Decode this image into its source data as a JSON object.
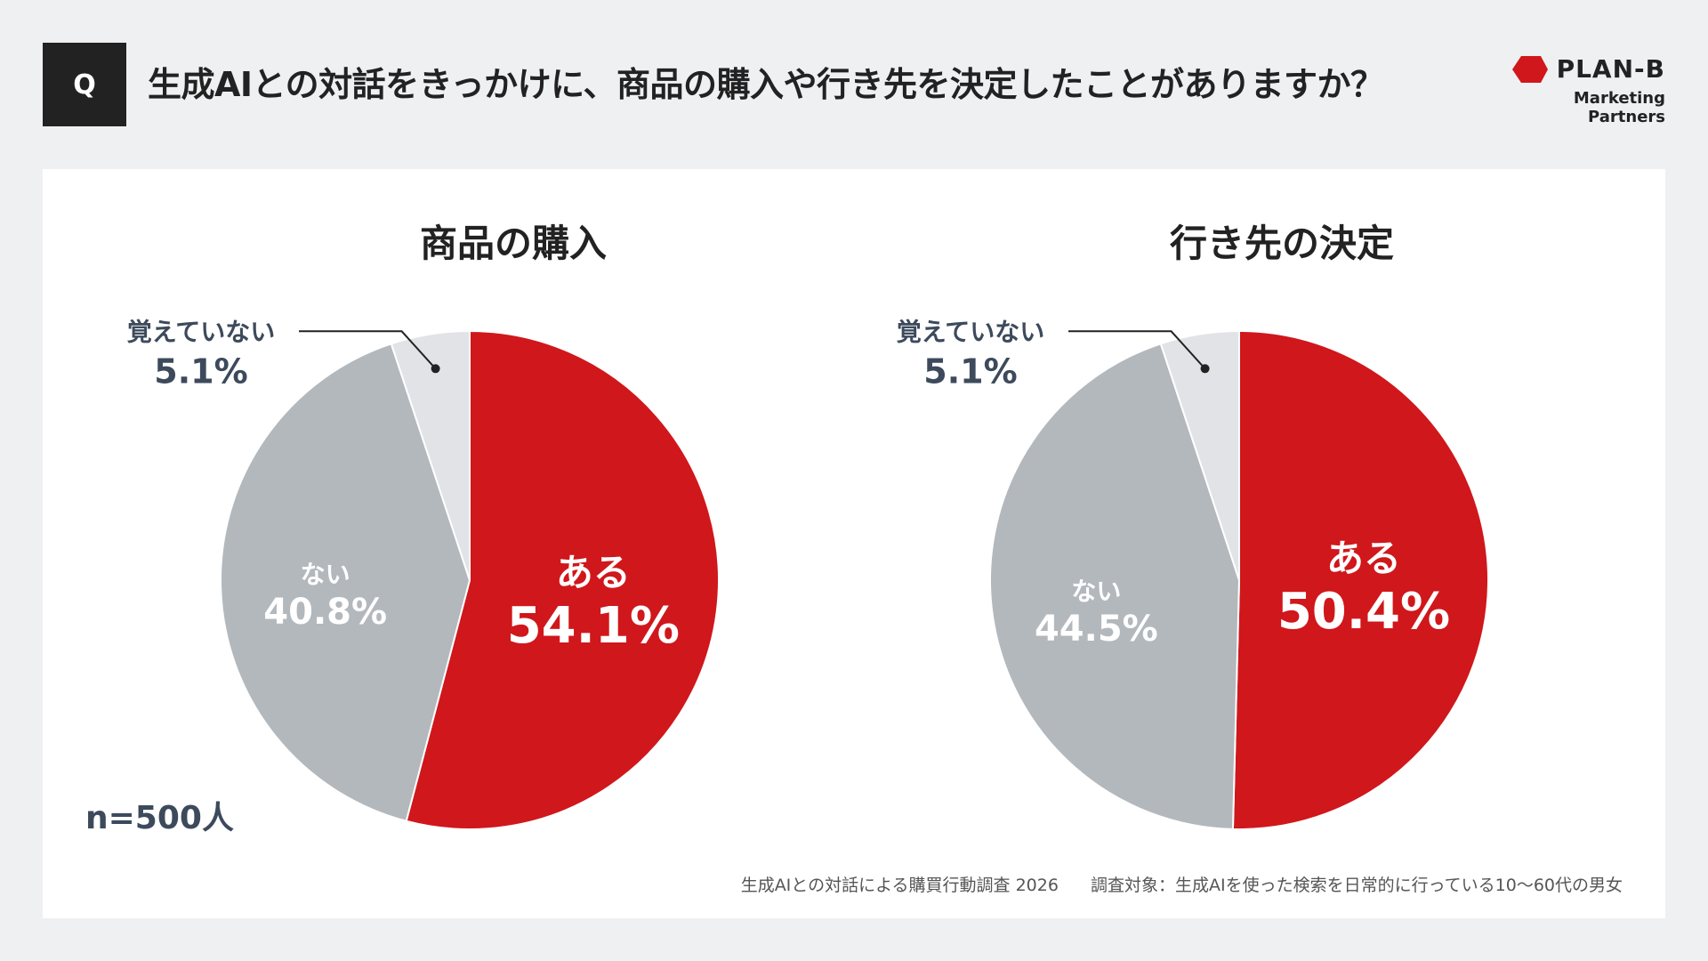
{
  "header": {
    "q_badge": "Q",
    "question": "生成AIとの対話をきっかけに、商品の購入や行き先を決定したことがありますか？"
  },
  "logo": {
    "name": "PLAN-B",
    "subtitle": "Marketing Partners",
    "mark_color": "#d0171b"
  },
  "colors": {
    "yes": "#d0171b",
    "no": "#b3b8bd",
    "unknown": "#e1e3e6"
  },
  "chart_data": [
    {
      "type": "pie",
      "title": "商品の購入",
      "slices": [
        {
          "label": "ある",
          "value": 54.1,
          "display": "54.1%"
        },
        {
          "label": "ない",
          "value": 40.8,
          "display": "40.8%"
        },
        {
          "label": "覚えていない",
          "value": 5.1,
          "display": "5.1%"
        }
      ]
    },
    {
      "type": "pie",
      "title": "行き先の決定",
      "slices": [
        {
          "label": "ある",
          "value": 50.4,
          "display": "50.4%"
        },
        {
          "label": "ない",
          "value": 44.5,
          "display": "44.5%"
        },
        {
          "label": "覚えていない",
          "value": 5.1,
          "display": "5.1%"
        }
      ]
    }
  ],
  "sample": "n=500人",
  "footer": {
    "survey": "生成AIとの対話による購買行動調査 2026",
    "target": "調査対象：生成AIを使った検索を日常的に行っている10〜60代の男女"
  }
}
